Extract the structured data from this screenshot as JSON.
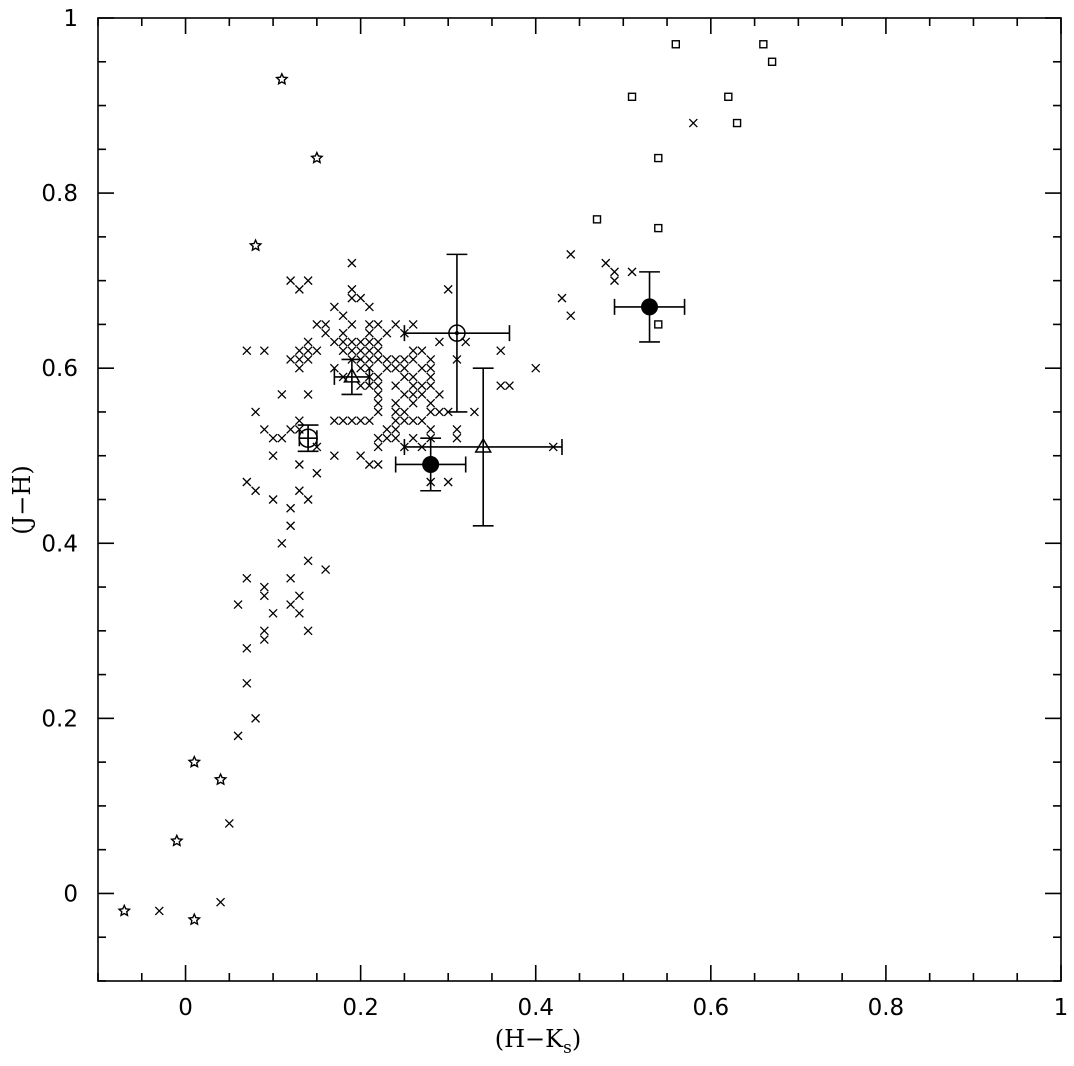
{
  "chart_data": {
    "type": "scatter",
    "title": "",
    "xlabel": "(H-K_s)",
    "xlabel_main": "(H−K",
    "xlabel_sub": "s",
    "xlabel_close": ")",
    "ylabel": "(J−H)",
    "xlim": [
      -0.1,
      1.0
    ],
    "ylim": [
      -0.1,
      1.0
    ],
    "grid": false,
    "legend": null,
    "x_major_ticks": [
      0,
      0.2,
      0.4,
      0.6,
      0.8,
      1
    ],
    "x_tick_labels": [
      "0",
      "0.2",
      "0.4",
      "0.6",
      "0.8",
      "1"
    ],
    "x_minor_step": 0.05,
    "y_major_ticks": [
      0,
      0.2,
      0.4,
      0.6,
      0.8,
      1
    ],
    "y_tick_labels": [
      "0",
      "0.2",
      "0.4",
      "0.6",
      "0.8",
      "1"
    ],
    "y_minor_step": 0.05,
    "series": [
      {
        "name": "cross",
        "marker": "x",
        "points": [
          [
            0.58,
            0.88
          ],
          [
            0.44,
            0.73
          ],
          [
            0.48,
            0.72
          ],
          [
            0.49,
            0.71
          ],
          [
            0.51,
            0.71
          ],
          [
            0.49,
            0.7
          ],
          [
            0.43,
            0.68
          ],
          [
            0.44,
            0.66
          ],
          [
            0.4,
            0.6
          ],
          [
            0.19,
            0.72
          ],
          [
            0.12,
            0.7
          ],
          [
            0.14,
            0.7
          ],
          [
            0.13,
            0.69
          ],
          [
            0.19,
            0.69
          ],
          [
            0.19,
            0.68
          ],
          [
            0.2,
            0.68
          ],
          [
            0.17,
            0.67
          ],
          [
            0.21,
            0.67
          ],
          [
            0.18,
            0.66
          ],
          [
            0.15,
            0.65
          ],
          [
            0.16,
            0.65
          ],
          [
            0.19,
            0.65
          ],
          [
            0.21,
            0.65
          ],
          [
            0.22,
            0.65
          ],
          [
            0.24,
            0.65
          ],
          [
            0.26,
            0.65
          ],
          [
            0.16,
            0.64
          ],
          [
            0.18,
            0.64
          ],
          [
            0.21,
            0.64
          ],
          [
            0.23,
            0.64
          ],
          [
            0.25,
            0.64
          ],
          [
            0.3,
            0.69
          ],
          [
            0.31,
            0.61
          ],
          [
            0.32,
            0.63
          ],
          [
            0.14,
            0.63
          ],
          [
            0.17,
            0.63
          ],
          [
            0.18,
            0.63
          ],
          [
            0.19,
            0.63
          ],
          [
            0.2,
            0.63
          ],
          [
            0.21,
            0.63
          ],
          [
            0.22,
            0.63
          ],
          [
            0.29,
            0.63
          ],
          [
            0.13,
            0.62
          ],
          [
            0.14,
            0.62
          ],
          [
            0.15,
            0.62
          ],
          [
            0.18,
            0.62
          ],
          [
            0.19,
            0.62
          ],
          [
            0.2,
            0.62
          ],
          [
            0.21,
            0.62
          ],
          [
            0.22,
            0.62
          ],
          [
            0.26,
            0.62
          ],
          [
            0.27,
            0.62
          ],
          [
            0.36,
            0.62
          ],
          [
            0.07,
            0.62
          ],
          [
            0.09,
            0.62
          ],
          [
            0.12,
            0.61
          ],
          [
            0.13,
            0.61
          ],
          [
            0.14,
            0.61
          ],
          [
            0.19,
            0.61
          ],
          [
            0.2,
            0.61
          ],
          [
            0.21,
            0.61
          ],
          [
            0.22,
            0.61
          ],
          [
            0.23,
            0.61
          ],
          [
            0.24,
            0.61
          ],
          [
            0.25,
            0.61
          ],
          [
            0.26,
            0.61
          ],
          [
            0.28,
            0.61
          ],
          [
            0.13,
            0.6
          ],
          [
            0.17,
            0.6
          ],
          [
            0.2,
            0.6
          ],
          [
            0.21,
            0.6
          ],
          [
            0.23,
            0.6
          ],
          [
            0.24,
            0.6
          ],
          [
            0.25,
            0.6
          ],
          [
            0.27,
            0.6
          ],
          [
            0.28,
            0.6
          ],
          [
            0.18,
            0.59
          ],
          [
            0.21,
            0.59
          ],
          [
            0.22,
            0.59
          ],
          [
            0.25,
            0.59
          ],
          [
            0.26,
            0.59
          ],
          [
            0.28,
            0.59
          ],
          [
            0.2,
            0.58
          ],
          [
            0.21,
            0.58
          ],
          [
            0.22,
            0.58
          ],
          [
            0.24,
            0.58
          ],
          [
            0.26,
            0.58
          ],
          [
            0.27,
            0.58
          ],
          [
            0.28,
            0.58
          ],
          [
            0.36,
            0.58
          ],
          [
            0.37,
            0.58
          ],
          [
            0.22,
            0.57
          ],
          [
            0.25,
            0.57
          ],
          [
            0.26,
            0.57
          ],
          [
            0.27,
            0.57
          ],
          [
            0.29,
            0.57
          ],
          [
            0.11,
            0.57
          ],
          [
            0.14,
            0.57
          ],
          [
            0.22,
            0.56
          ],
          [
            0.24,
            0.56
          ],
          [
            0.26,
            0.56
          ],
          [
            0.28,
            0.56
          ],
          [
            0.22,
            0.55
          ],
          [
            0.24,
            0.55
          ],
          [
            0.25,
            0.55
          ],
          [
            0.28,
            0.55
          ],
          [
            0.29,
            0.55
          ],
          [
            0.3,
            0.55
          ],
          [
            0.33,
            0.55
          ],
          [
            0.08,
            0.55
          ],
          [
            0.17,
            0.54
          ],
          [
            0.18,
            0.54
          ],
          [
            0.19,
            0.54
          ],
          [
            0.2,
            0.54
          ],
          [
            0.21,
            0.54
          ],
          [
            0.24,
            0.54
          ],
          [
            0.25,
            0.54
          ],
          [
            0.26,
            0.54
          ],
          [
            0.27,
            0.54
          ],
          [
            0.13,
            0.54
          ],
          [
            0.23,
            0.53
          ],
          [
            0.24,
            0.53
          ],
          [
            0.28,
            0.53
          ],
          [
            0.31,
            0.53
          ],
          [
            0.09,
            0.53
          ],
          [
            0.12,
            0.53
          ],
          [
            0.13,
            0.53
          ],
          [
            0.22,
            0.52
          ],
          [
            0.23,
            0.52
          ],
          [
            0.24,
            0.52
          ],
          [
            0.26,
            0.52
          ],
          [
            0.28,
            0.52
          ],
          [
            0.31,
            0.52
          ],
          [
            0.1,
            0.52
          ],
          [
            0.11,
            0.52
          ],
          [
            0.22,
            0.51
          ],
          [
            0.25,
            0.51
          ],
          [
            0.27,
            0.51
          ],
          [
            0.42,
            0.51
          ],
          [
            0.15,
            0.51
          ],
          [
            0.2,
            0.5
          ],
          [
            0.1,
            0.5
          ],
          [
            0.17,
            0.5
          ],
          [
            0.21,
            0.49
          ],
          [
            0.22,
            0.49
          ],
          [
            0.13,
            0.49
          ],
          [
            0.15,
            0.48
          ],
          [
            0.28,
            0.47
          ],
          [
            0.3,
            0.47
          ],
          [
            0.07,
            0.47
          ],
          [
            0.08,
            0.46
          ],
          [
            0.13,
            0.46
          ],
          [
            0.1,
            0.45
          ],
          [
            0.14,
            0.45
          ],
          [
            0.12,
            0.44
          ],
          [
            0.12,
            0.42
          ],
          [
            0.11,
            0.4
          ],
          [
            0.14,
            0.38
          ],
          [
            0.16,
            0.37
          ],
          [
            0.07,
            0.36
          ],
          [
            0.12,
            0.36
          ],
          [
            0.09,
            0.35
          ],
          [
            0.09,
            0.34
          ],
          [
            0.13,
            0.34
          ],
          [
            0.06,
            0.33
          ],
          [
            0.12,
            0.33
          ],
          [
            0.1,
            0.32
          ],
          [
            0.13,
            0.32
          ],
          [
            0.09,
            0.3
          ],
          [
            0.14,
            0.3
          ],
          [
            0.09,
            0.29
          ],
          [
            0.07,
            0.28
          ],
          [
            0.07,
            0.24
          ],
          [
            0.08,
            0.2
          ],
          [
            0.06,
            0.18
          ],
          [
            0.05,
            0.08
          ],
          [
            0.04,
            -0.01
          ],
          [
            -0.03,
            -0.02
          ]
        ]
      },
      {
        "name": "star",
        "marker": "star",
        "points": [
          [
            0.11,
            0.93
          ],
          [
            0.15,
            0.84
          ],
          [
            0.08,
            0.74
          ],
          [
            0.01,
            0.15
          ],
          [
            0.04,
            0.13
          ],
          [
            -0.01,
            0.06
          ],
          [
            -0.07,
            -0.02
          ],
          [
            0.01,
            -0.03
          ]
        ]
      },
      {
        "name": "square",
        "marker": "square",
        "points": [
          [
            0.56,
            0.97
          ],
          [
            0.66,
            0.97
          ],
          [
            0.67,
            0.95
          ],
          [
            0.51,
            0.91
          ],
          [
            0.62,
            0.91
          ],
          [
            0.63,
            0.88
          ],
          [
            0.54,
            0.84
          ],
          [
            0.47,
            0.77
          ],
          [
            0.54,
            0.76
          ],
          [
            0.54,
            0.65
          ]
        ]
      },
      {
        "name": "filled-circle-errorbar",
        "marker": "filled-circle",
        "points": [
          {
            "x": 0.53,
            "y": 0.67,
            "xerr": [
              0.04,
              0.04
            ],
            "yerr": [
              0.04,
              0.04
            ]
          },
          {
            "x": 0.28,
            "y": 0.49,
            "xerr": [
              0.04,
              0.04
            ],
            "yerr": [
              0.03,
              0.03
            ]
          }
        ]
      },
      {
        "name": "open-circle-dot-errorbar",
        "marker": "circle-dot",
        "points": [
          {
            "x": 0.31,
            "y": 0.64,
            "xerr": [
              0.06,
              0.06
            ],
            "yerr": [
              0.09,
              0.09
            ]
          }
        ]
      },
      {
        "name": "open-circle-cross-errorbar",
        "marker": "circle-cross",
        "points": [
          {
            "x": 0.14,
            "y": 0.52,
            "xerr": [
              0.01,
              0.01
            ],
            "yerr": [
              0.015,
              0.015
            ]
          }
        ]
      },
      {
        "name": "triangle-errorbar",
        "marker": "triangle",
        "points": [
          {
            "x": 0.34,
            "y": 0.51,
            "xerr": [
              0.09,
              0.09
            ],
            "yerr": [
              0.09,
              0.09
            ]
          },
          {
            "x": 0.19,
            "y": 0.59,
            "xerr": [
              0.02,
              0.02
            ],
            "yerr": [
              0.02,
              0.02
            ]
          }
        ]
      }
    ]
  }
}
